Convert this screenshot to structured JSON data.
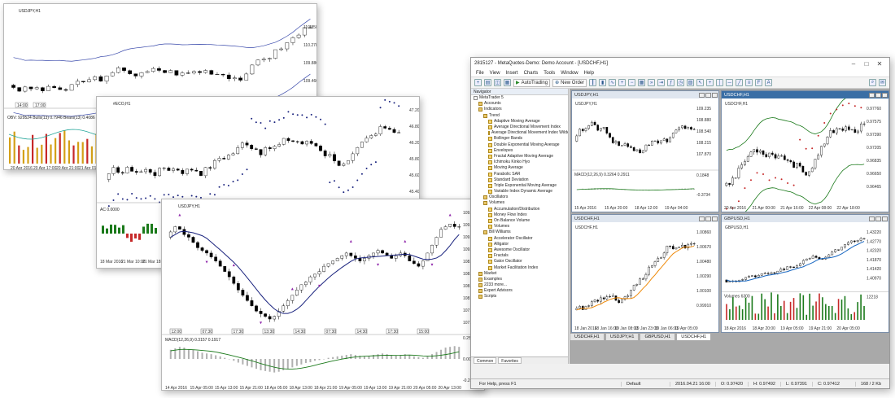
{
  "back_window": {
    "pair_label": "USDJPY,H1",
    "obv_label": "OBV: 929524 Bulls(13) 0.7946 Bears(13) 0.4086",
    "price_ticks": [
      "110.850",
      "110.270",
      "109.880",
      "109.460"
    ],
    "date_ticks": [
      "20 Apr 2016",
      "20 Apr 17:00",
      "20 Apr 21:00",
      "21 Apr 01:00"
    ],
    "tags": [
      "14:00",
      "17:00"
    ]
  },
  "middle_window": {
    "pair_label": "#ECO,H1",
    "ac_label": "AC 0.0000",
    "price_ticks": [
      "47.20",
      "46.80",
      "46.20",
      "45.80",
      "45.60",
      "45.40"
    ],
    "date_ticks": [
      "18 Mar 2016",
      "21 Mar 10:00",
      "21 Mar 18:00"
    ]
  },
  "front_window": {
    "pair_label": "USDJPY,H1",
    "macd_label": "MACD(12,26,9) 0.3157 0.1917",
    "price_ticks": [
      "109.790",
      "109.545",
      "109.340",
      "109.125",
      "108.905",
      "108.645",
      "108.365",
      "108.130",
      "107.915",
      "107.765"
    ],
    "macd_ticks": [
      "0.2538",
      "0.0000",
      "-0.2766"
    ],
    "date_ticks": [
      "14 Apr 2016",
      "15 Apr 05:00",
      "15 Apr 13:00",
      "15 Apr 21:00",
      "18 Apr 05:00",
      "18 Apr 13:00",
      "18 Apr 21:00",
      "19 Apr 05:00",
      "19 Apr 13:00",
      "19 Apr 21:00",
      "20 Apr 05:00",
      "20 Apr 13:00"
    ],
    "tags": [
      "12:00",
      "07:30",
      "17:30",
      "13:30",
      "14:30",
      "07:30",
      "14:30",
      "17:30",
      "15:00"
    ]
  },
  "metatrader": {
    "title": "2815127 - MetaQuotes-Demo: Demo Account - [USDCHF,H1]",
    "menu": [
      "File",
      "View",
      "Insert",
      "Charts",
      "Tools",
      "Window",
      "Help"
    ],
    "toolbar": {
      "autotrading": "AutoTrading",
      "new_order": "New Order"
    },
    "navigator": {
      "header": "Navigator",
      "items": [
        {
          "label": "MetaTrader 5",
          "level": 0,
          "icon": "app"
        },
        {
          "label": "Accounts",
          "level": 1,
          "icon": "fold"
        },
        {
          "label": "Indicators",
          "level": 1,
          "icon": "fold"
        },
        {
          "label": "Trend",
          "level": 2,
          "icon": "fold"
        },
        {
          "label": "Adaptive Moving Average",
          "level": 3,
          "icon": "ind"
        },
        {
          "label": "Average Directional Movement Index",
          "level": 3,
          "icon": "ind"
        },
        {
          "label": "Average Directional Movement Index Wilder",
          "level": 3,
          "icon": "ind"
        },
        {
          "label": "Bollinger Bands",
          "level": 3,
          "icon": "ind"
        },
        {
          "label": "Double Exponential Moving Average",
          "level": 3,
          "icon": "ind"
        },
        {
          "label": "Envelopes",
          "level": 3,
          "icon": "ind"
        },
        {
          "label": "Fractal Adaptive Moving Average",
          "level": 3,
          "icon": "ind"
        },
        {
          "label": "Ichimoku Kinko Hyo",
          "level": 3,
          "icon": "ind"
        },
        {
          "label": "Moving Average",
          "level": 3,
          "icon": "ind"
        },
        {
          "label": "Parabolic SAR",
          "level": 3,
          "icon": "ind"
        },
        {
          "label": "Standard Deviation",
          "level": 3,
          "icon": "ind"
        },
        {
          "label": "Triple Exponential Moving Average",
          "level": 3,
          "icon": "ind"
        },
        {
          "label": "Variable Index Dynamic Average",
          "level": 3,
          "icon": "ind"
        },
        {
          "label": "Oscillators",
          "level": 2,
          "icon": "fold"
        },
        {
          "label": "Volumes",
          "level": 2,
          "icon": "fold"
        },
        {
          "label": "Accumulation/Distribution",
          "level": 3,
          "icon": "ind"
        },
        {
          "label": "Money Flow Index",
          "level": 3,
          "icon": "ind"
        },
        {
          "label": "On Balance Volume",
          "level": 3,
          "icon": "ind"
        },
        {
          "label": "Volumes",
          "level": 3,
          "icon": "ind"
        },
        {
          "label": "Bill Williams",
          "level": 2,
          "icon": "fold"
        },
        {
          "label": "Accelerator Oscillator",
          "level": 3,
          "icon": "ind"
        },
        {
          "label": "Alligator",
          "level": 3,
          "icon": "ind"
        },
        {
          "label": "Awesome Oscillator",
          "level": 3,
          "icon": "ind"
        },
        {
          "label": "Fractals",
          "level": 3,
          "icon": "ind"
        },
        {
          "label": "Gator Oscillator",
          "level": 3,
          "icon": "ind"
        },
        {
          "label": "Market Facilitation Index",
          "level": 3,
          "icon": "ind"
        },
        {
          "label": "Market",
          "level": 1,
          "icon": "fold"
        },
        {
          "label": "Examples",
          "level": 1,
          "icon": "fold"
        },
        {
          "label": "2233 more...",
          "level": 1,
          "icon": "fold"
        },
        {
          "label": "Expert Advisors",
          "level": 1,
          "icon": "fold"
        },
        {
          "label": "Scripts",
          "level": 1,
          "icon": "fold"
        }
      ],
      "tabs": [
        "Common",
        "Favorites"
      ]
    },
    "charts": [
      {
        "title": "USDJPY,H1",
        "label": "USDJPY,H1",
        "macd": "MACD(12,26,9) 0.3264 0.2911",
        "ticks": [
          "109.235",
          "108.880",
          "108.540",
          "108.215",
          "107.870"
        ],
        "dates": [
          "15 Apr 2016",
          "15 Apr 20:00",
          "18 Apr 12:00",
          "19 Apr 04:00"
        ],
        "sub_ticks": [
          "0.1848",
          "-0.3734"
        ]
      },
      {
        "title": "USDCHF,H1",
        "label": "USDCHF,H1",
        "ticks": [
          "0.97760",
          "0.97575",
          "0.97390",
          "0.97205",
          "0.96835",
          "0.96650",
          "0.96465"
        ],
        "dates": [
          "20 Apr 2016",
          "21 Apr 00:00",
          "21 Apr 16:00",
          "22 Apr 08:00",
          "22 Apr 18:00"
        ]
      },
      {
        "title": "USDCHF,H1",
        "label": "USDCHF,H1",
        "ticks": [
          "1.00860",
          "1.00670",
          "1.00480",
          "1.00290",
          "1.00100",
          "0.99910"
        ],
        "dates": [
          "18 Jan 2016",
          "18 Jan 16:00",
          "19 Jan 08:00",
          "19 Jan 23:00",
          "19 Jan 06:01",
          "19 Apr 05:09"
        ]
      },
      {
        "title": "GBPUSD,H1",
        "label": "GBPUSD,H1",
        "volumes": "Volumes 6300",
        "ticks": [
          "1.43220",
          "1.42770",
          "1.42320",
          "1.41870",
          "1.41420",
          "1.40970"
        ],
        "vol_tick": "12218",
        "dates": [
          "18 Apr 2016",
          "18 Apr 20:00",
          "19 Apr 05:00",
          "19 Apr 21:00",
          "20 Apr 05:00"
        ]
      }
    ],
    "chart_tabs": [
      "USDCHF,H1",
      "USDJPY,H1",
      "GBPUSD,H1",
      "USDCHF,H1"
    ],
    "status": {
      "help": "For Help, press F1",
      "profile": "Default",
      "time": "2016.04.21 16:00",
      "o": "O: 0.97420",
      "h": "H: 0.97492",
      "l": "L: 0.97391",
      "c": "C: 0.97412",
      "traffic": "168 / 2 Kb"
    }
  },
  "colors": {
    "bull": "#ffffff",
    "bear": "#000000",
    "blue": "#1a237e",
    "green": "#1b7a1b",
    "red": "#c62828",
    "gold": "#d4a017",
    "orange": "#ef8a0a",
    "purple": "#8e24aa",
    "macd_hist": "#b0b0b0"
  }
}
